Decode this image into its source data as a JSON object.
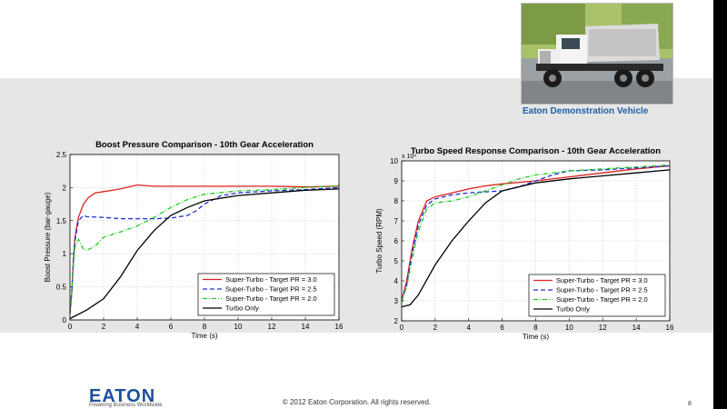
{
  "slide": {
    "photo_caption": "Eaton Demonstration Vehicle",
    "logo_text": "EATON",
    "tagline": "Powering Business Worldwide",
    "copyright": "© 2012 Eaton Corporation. All rights reserved.",
    "page_number": "8"
  },
  "chart_data": [
    {
      "type": "line",
      "title": "Boost Pressure Comparison - 10th Gear Acceleration",
      "xlabel": "Time (s)",
      "ylabel": "Boost Pressure (bar-gauge)",
      "xlim": [
        0,
        16
      ],
      "ylim": [
        0,
        2.5
      ],
      "xticks": [
        0,
        2,
        4,
        6,
        8,
        10,
        12,
        14,
        16
      ],
      "yticks": [
        0,
        0.5,
        1,
        1.5,
        2,
        2.5
      ],
      "grid": true,
      "legend_position": "lower-right",
      "series": [
        {
          "name": "Super-Turbo - Target PR = 3.0",
          "color": "#e02020",
          "dash": "",
          "x": [
            0,
            0.1,
            0.2,
            0.3,
            0.5,
            0.8,
            1.1,
            1.5,
            2,
            3,
            4,
            5,
            6,
            8,
            10,
            12,
            14,
            16
          ],
          "y": [
            0.1,
            0.4,
            0.9,
            1.25,
            1.55,
            1.75,
            1.85,
            1.92,
            1.94,
            1.98,
            2.04,
            2.02,
            2.02,
            2.02,
            2.02,
            2.02,
            2.01,
            2.02
          ]
        },
        {
          "name": "Super-Turbo - Target PR = 2.5",
          "color": "#1a2fd6",
          "dash": "5,3",
          "x": [
            0,
            0.1,
            0.2,
            0.3,
            0.5,
            0.8,
            1,
            2,
            3,
            4,
            5,
            6,
            7,
            7.5,
            8,
            9,
            10,
            12,
            14,
            16
          ],
          "y": [
            0.1,
            0.4,
            0.9,
            1.2,
            1.5,
            1.58,
            1.56,
            1.55,
            1.53,
            1.53,
            1.53,
            1.54,
            1.58,
            1.65,
            1.75,
            1.88,
            1.92,
            1.95,
            1.97,
            2.0
          ]
        },
        {
          "name": "Super-Turbo - Target PR = 2.0",
          "color": "#22cc22",
          "dash": "5,2,1,2",
          "x": [
            0,
            0.1,
            0.2,
            0.3,
            0.5,
            0.8,
            1,
            1.5,
            2,
            3,
            4,
            5,
            6,
            7,
            8,
            10,
            12,
            14,
            16
          ],
          "y": [
            0.1,
            0.4,
            0.8,
            1.1,
            1.22,
            1.07,
            1.05,
            1.12,
            1.25,
            1.33,
            1.42,
            1.55,
            1.7,
            1.82,
            1.9,
            1.95,
            1.97,
            2.0,
            2.03
          ]
        },
        {
          "name": "Turbo Only",
          "color": "#000000",
          "dash": "",
          "x": [
            0,
            1,
            2,
            3,
            4,
            5,
            6,
            7,
            8,
            10,
            12,
            14,
            16
          ],
          "y": [
            0.02,
            0.15,
            0.32,
            0.65,
            1.05,
            1.35,
            1.58,
            1.7,
            1.8,
            1.88,
            1.92,
            1.96,
            1.98
          ]
        }
      ]
    },
    {
      "type": "line",
      "title": "Turbo Speed Response Comparison - 10th Gear Acceleration",
      "xlabel": "Time (s)",
      "ylabel": "Turbo Speed (RPM)",
      "y_multiplier": "x 10⁴",
      "xlim": [
        0,
        16
      ],
      "ylim": [
        2,
        10
      ],
      "xticks": [
        0,
        2,
        4,
        6,
        8,
        10,
        12,
        14,
        16
      ],
      "yticks": [
        2,
        3,
        4,
        5,
        6,
        7,
        8,
        9,
        10
      ],
      "grid": true,
      "legend_position": "lower-right",
      "series": [
        {
          "name": "Super-Turbo - Target PR = 3.0",
          "color": "#e02020",
          "dash": "",
          "x": [
            0,
            0.3,
            0.6,
            1,
            1.5,
            2,
            3,
            4,
            5,
            6,
            8,
            10,
            12,
            14,
            16
          ],
          "y": [
            3.0,
            4.0,
            5.5,
            7.0,
            8.0,
            8.2,
            8.4,
            8.6,
            8.75,
            8.85,
            9.0,
            9.2,
            9.4,
            9.6,
            9.75
          ]
        },
        {
          "name": "Super-Turbo - Target PR = 2.5",
          "color": "#1a2fd6",
          "dash": "5,3",
          "x": [
            0,
            0.3,
            0.6,
            1,
            1.5,
            2,
            3,
            4,
            5,
            6,
            7,
            8,
            9,
            10,
            12,
            14,
            16
          ],
          "y": [
            3.0,
            3.8,
            5.3,
            6.8,
            7.8,
            8.1,
            8.3,
            8.4,
            8.45,
            8.5,
            8.7,
            9.0,
            9.3,
            9.5,
            9.55,
            9.65,
            9.75
          ]
        },
        {
          "name": "Super-Turbo - Target PR = 2.0",
          "color": "#22cc22",
          "dash": "5,2,1,2",
          "x": [
            0,
            0.3,
            0.6,
            1,
            1.5,
            2,
            3,
            4,
            5,
            6,
            7,
            8,
            10,
            12,
            14,
            16
          ],
          "y": [
            3.0,
            3.7,
            5.0,
            6.5,
            7.6,
            7.9,
            8.0,
            8.2,
            8.5,
            8.8,
            9.1,
            9.3,
            9.5,
            9.6,
            9.7,
            9.8
          ]
        },
        {
          "name": "Turbo Only",
          "color": "#000000",
          "dash": "",
          "x": [
            0,
            0.5,
            1,
            2,
            3,
            4,
            5,
            6,
            8,
            10,
            12,
            14,
            16
          ],
          "y": [
            2.7,
            2.8,
            3.3,
            4.8,
            6.0,
            7.0,
            7.9,
            8.5,
            8.9,
            9.1,
            9.25,
            9.4,
            9.55
          ]
        }
      ]
    }
  ]
}
